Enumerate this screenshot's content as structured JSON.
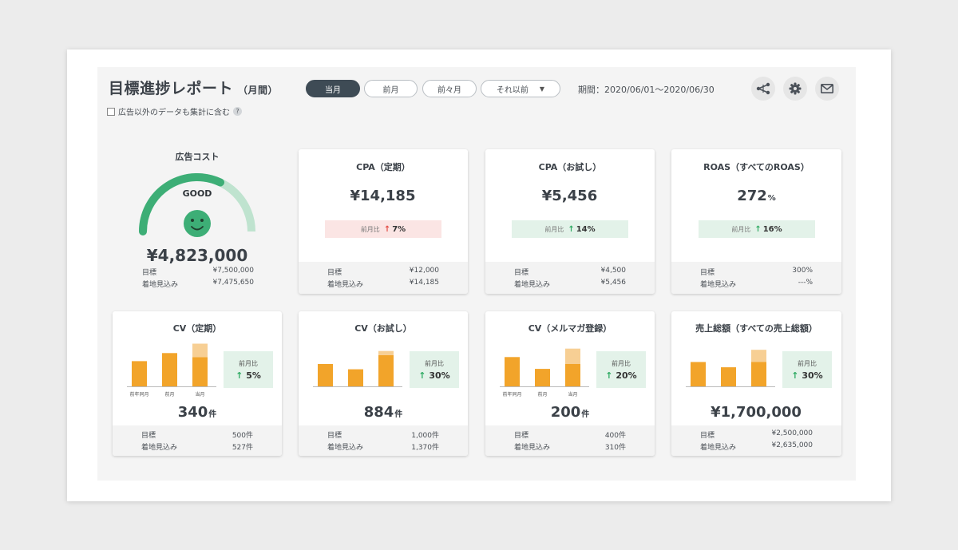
{
  "header": {
    "title": "目標進捗レポート",
    "subtitle": "（月間）",
    "period_tabs": [
      {
        "label": "当月",
        "active": true
      },
      {
        "label": "前月",
        "active": false
      },
      {
        "label": "前々月",
        "active": false
      },
      {
        "label": "それ以前",
        "active": false
      }
    ],
    "period_text": "期間：2020/06/01～2020/06/30",
    "icons": [
      "share-icon",
      "gear-icon",
      "mail-icon"
    ]
  },
  "filter": {
    "include_non_ad_label": "広告以外のデータも集計に含む",
    "checked": false,
    "help": "?"
  },
  "cost": {
    "title": "広告コスト",
    "status": "GOOD",
    "value": "¥4,823,000",
    "progress": 0.64,
    "forecast_progress": 1.0,
    "rows": [
      {
        "label": "目標",
        "value": "¥7,500,000"
      },
      {
        "label": "着地見込み",
        "value": "¥7,475,650"
      }
    ]
  },
  "kpis": [
    {
      "title": "CPA（定期）",
      "value": "¥14,185",
      "unit": "",
      "compare_label": "前月比",
      "direction": "up",
      "tone": "red",
      "change": "7%",
      "rows": [
        {
          "label": "目標",
          "value": "¥12,000"
        },
        {
          "label": "着地見込み",
          "value": "¥14,185"
        }
      ]
    },
    {
      "title": "CPA（お試し）",
      "value": "¥5,456",
      "unit": "",
      "compare_label": "前月比",
      "direction": "up",
      "tone": "green",
      "change": "14%",
      "rows": [
        {
          "label": "目標",
          "value": "¥4,500"
        },
        {
          "label": "着地見込み",
          "value": "¥5,456"
        }
      ]
    },
    {
      "title": "ROAS（すべてのROAS）",
      "value": "272",
      "unit": "%",
      "compare_label": "前月比",
      "direction": "up",
      "tone": "green",
      "change": "16%",
      "rows": [
        {
          "label": "目標",
          "value": "300%"
        },
        {
          "label": "着地見込み",
          "value": "---%"
        }
      ]
    }
  ],
  "cv_cards": [
    {
      "title": "CV（定期）",
      "value": "340",
      "unit": "件",
      "compare_label": "前月比",
      "change": "5%",
      "rows": [
        {
          "label": "目標",
          "value": "500件"
        },
        {
          "label": "着地見込み",
          "value": "527件"
        }
      ]
    },
    {
      "title": "CV（お試し）",
      "value": "884",
      "unit": "件",
      "compare_label": "前月比",
      "change": "30%",
      "rows": [
        {
          "label": "目標",
          "value": "1,000件"
        },
        {
          "label": "着地見込み",
          "value": "1,370件"
        }
      ]
    },
    {
      "title": "CV（メルマガ登録）",
      "value": "200",
      "unit": "件",
      "compare_label": "前月比",
      "change": "20%",
      "rows": [
        {
          "label": "目標",
          "value": "400件"
        },
        {
          "label": "着地見込み",
          "value": "310件"
        }
      ]
    },
    {
      "title": "売上総額（すべての売上総額）",
      "value": "¥1,700,000",
      "unit": "",
      "compare_label": "前月比",
      "change": "30%",
      "rows": [
        {
          "label": "目標",
          "value": "¥2,500,000"
        },
        {
          "label": "着地見込み",
          "value": "¥2,635,000"
        }
      ]
    }
  ],
  "chart_data": [
    {
      "type": "bar",
      "categories": [
        "前年同月",
        "前月",
        "当月"
      ],
      "series": [
        {
          "name": "",
          "values": [
            0.62,
            0.82,
            0.72
          ]
        },
        {
          "name": "",
          "values": [
            0,
            0,
            0.33
          ]
        }
      ],
      "ylim": [
        0,
        1.1
      ]
    },
    {
      "type": "bar",
      "categories": [
        "",
        "",
        ""
      ],
      "series": [
        {
          "name": "",
          "values": [
            0.55,
            0.42,
            0.77
          ]
        },
        {
          "name": "",
          "values": [
            0,
            0,
            0.1
          ]
        }
      ],
      "ylim": [
        0,
        1.1
      ]
    },
    {
      "type": "bar",
      "categories": [
        "前年同月",
        "前月",
        "当月"
      ],
      "series": [
        {
          "name": "",
          "values": [
            0.72,
            0.43,
            0.55
          ]
        },
        {
          "name": "",
          "values": [
            0,
            0,
            0.38
          ]
        }
      ],
      "ylim": [
        0,
        1.1
      ]
    },
    {
      "type": "bar",
      "categories": [
        "",
        "",
        ""
      ],
      "series": [
        {
          "name": "",
          "values": [
            0.6,
            0.47,
            0.6
          ]
        },
        {
          "name": "",
          "values": [
            0,
            0,
            0.3
          ]
        }
      ],
      "ylim": [
        0,
        1.1
      ]
    }
  ],
  "colors": {
    "accent": "#3dae76",
    "accent_light": "#bfe3cf",
    "bar": "#f2a42a",
    "bar_light": "#f7cf94",
    "down_red": "#e34c44",
    "up_green": "#2eaa62",
    "dark_tab": "#3e4b55"
  }
}
